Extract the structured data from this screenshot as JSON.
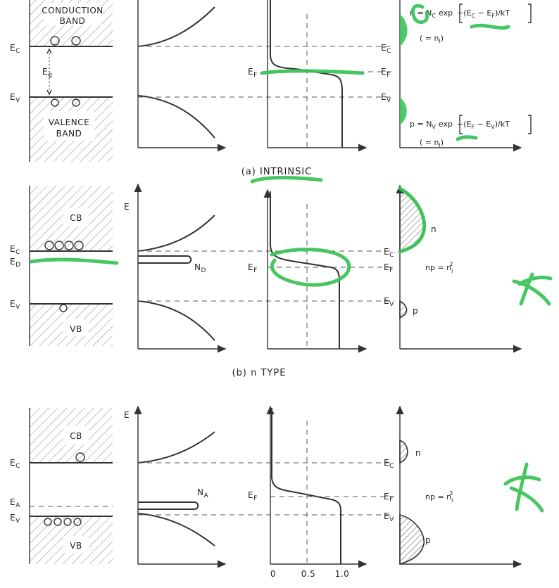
{
  "panels": {
    "a": {
      "caption": "(a) INTRINSIC",
      "band_top": "CONDUCTION",
      "band_top2": "BAND",
      "band_bot": "VALENCE",
      "band_bot2": "BAND",
      "ec": "E",
      "ec_sub": "C",
      "ev": "E",
      "ev_sub": "V",
      "eg": "E",
      "eg_sub": "g",
      "ef": "E",
      "ef_sub": "F",
      "n_formula": "n = N",
      "n_formula_sub": "C",
      "n_exp": "exp",
      "n_bracket": "−(E",
      "n_bracket_c": "C",
      "n_bracket_mid": " − E",
      "n_bracket_f": "F",
      "n_bracket_end": ")/kT",
      "n_equals": "( = n",
      "n_equals_sub": "i",
      "n_equals_end": ")",
      "p_formula": "p = N",
      "p_formula_sub": "V",
      "p_exp": "exp",
      "p_bracket": "−(E",
      "p_bracket_f": "F",
      "p_bracket_mid": " − E",
      "p_bracket_v": "V",
      "p_bracket_end": ")/kT",
      "p_equals": "( = n",
      "p_equals_sub": "i",
      "p_equals_end": ")"
    },
    "b": {
      "caption": "(b) n TYPE",
      "cb": "CB",
      "vb": "VB",
      "ec": "E",
      "ec_sub": "C",
      "ed": "E",
      "ed_sub": "D",
      "ev": "E",
      "ev_sub": "V",
      "e_axis": "E",
      "nd": "N",
      "nd_sub": "D",
      "ef": "E",
      "ef_sub": "F",
      "n": "n",
      "p": "p",
      "np": "np = n",
      "np_sub": "i",
      "np_sup": "2"
    },
    "c": {
      "cb": "CB",
      "vb": "VB",
      "ec": "E",
      "ec_sub": "C",
      "ea": "E",
      "ea_sub": "A",
      "ev": "E",
      "ev_sub": "V",
      "e_axis": "E",
      "na": "N",
      "na_sub": "A",
      "ef": "E",
      "ef_sub": "F",
      "n": "n",
      "p": "p",
      "np": "np = n",
      "np_sub": "i",
      "np_sup": "2",
      "tick0": "0",
      "tick05": "0.5",
      "tick1": "1.0"
    }
  },
  "colors": {
    "annotation": "#3cc45a",
    "ink": "#333333"
  }
}
